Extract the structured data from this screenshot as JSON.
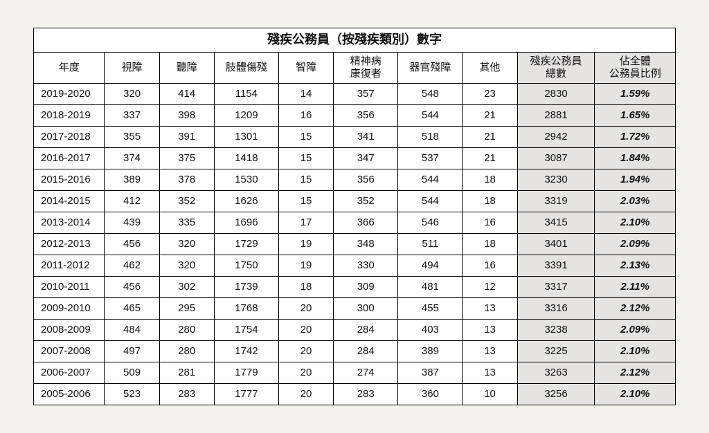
{
  "table": {
    "title": "殘疾公務員（按殘疾類別）數字",
    "header_fontsize": 18,
    "cell_fontsize": 15,
    "background_color": "#ffffff",
    "page_background": "#f4f2ed",
    "border_color": "#000000",
    "shaded_bg": "#e6e3e3",
    "columns": [
      {
        "key": "year",
        "label_lines": [
          "年度"
        ]
      },
      {
        "key": "visual",
        "label_lines": [
          "視障"
        ]
      },
      {
        "key": "hearing",
        "label_lines": [
          "聽障"
        ]
      },
      {
        "key": "physical",
        "label_lines": [
          "肢體傷殘"
        ]
      },
      {
        "key": "intel",
        "label_lines": [
          "智障"
        ]
      },
      {
        "key": "mental",
        "label_lines": [
          "精神病",
          "康復者"
        ]
      },
      {
        "key": "organ",
        "label_lines": [
          "器官殘障"
        ]
      },
      {
        "key": "other",
        "label_lines": [
          "其他"
        ]
      },
      {
        "key": "total",
        "label_lines": [
          "殘疾公務員",
          "總數"
        ],
        "shaded": true
      },
      {
        "key": "pct",
        "label_lines": [
          "佔全體",
          "公務員比例"
        ],
        "shaded": true,
        "italic": true
      }
    ],
    "rows": [
      {
        "year": "2019-2020",
        "visual": "320",
        "hearing": "414",
        "physical": "1154",
        "intel": "14",
        "mental": "357",
        "organ": "548",
        "other": "23",
        "total": "2830",
        "pct": "1.59%"
      },
      {
        "year": "2018-2019",
        "visual": "337",
        "hearing": "398",
        "physical": "1209",
        "intel": "16",
        "mental": "356",
        "organ": "544",
        "other": "21",
        "total": "2881",
        "pct": "1.65%"
      },
      {
        "year": "2017-2018",
        "visual": "355",
        "hearing": "391",
        "physical": "1301",
        "intel": "15",
        "mental": "341",
        "organ": "518",
        "other": "21",
        "total": "2942",
        "pct": "1.72%"
      },
      {
        "year": "2016-2017",
        "visual": "374",
        "hearing": "375",
        "physical": "1418",
        "intel": "15",
        "mental": "347",
        "organ": "537",
        "other": "21",
        "total": "3087",
        "pct": "1.84%"
      },
      {
        "year": "2015-2016",
        "visual": "389",
        "hearing": "378",
        "physical": "1530",
        "intel": "15",
        "mental": "356",
        "organ": "544",
        "other": "18",
        "total": "3230",
        "pct": "1.94%"
      },
      {
        "year": "2014-2015",
        "visual": "412",
        "hearing": "352",
        "physical": "1626",
        "intel": "15",
        "mental": "352",
        "organ": "544",
        "other": "18",
        "total": "3319",
        "pct": "2.03%"
      },
      {
        "year": "2013-2014",
        "visual": "439",
        "hearing": "335",
        "physical": "1696",
        "intel": "17",
        "mental": "366",
        "organ": "546",
        "other": "16",
        "total": "3415",
        "pct": "2.10%"
      },
      {
        "year": "2012-2013",
        "visual": "456",
        "hearing": "320",
        "physical": "1729",
        "intel": "19",
        "mental": "348",
        "organ": "511",
        "other": "18",
        "total": "3401",
        "pct": "2.09%"
      },
      {
        "year": "2011-2012",
        "visual": "462",
        "hearing": "320",
        "physical": "1750",
        "intel": "19",
        "mental": "330",
        "organ": "494",
        "other": "16",
        "total": "3391",
        "pct": "2.13%"
      },
      {
        "year": "2010-2011",
        "visual": "456",
        "hearing": "302",
        "physical": "1739",
        "intel": "18",
        "mental": "309",
        "organ": "481",
        "other": "12",
        "total": "3317",
        "pct": "2.11%"
      },
      {
        "year": "2009-2010",
        "visual": "465",
        "hearing": "295",
        "physical": "1768",
        "intel": "20",
        "mental": "300",
        "organ": "455",
        "other": "13",
        "total": "3316",
        "pct": "2.12%"
      },
      {
        "year": "2008-2009",
        "visual": "484",
        "hearing": "280",
        "physical": "1754",
        "intel": "20",
        "mental": "284",
        "organ": "403",
        "other": "13",
        "total": "3238",
        "pct": "2.09%"
      },
      {
        "year": "2007-2008",
        "visual": "497",
        "hearing": "280",
        "physical": "1742",
        "intel": "20",
        "mental": "284",
        "organ": "389",
        "other": "13",
        "total": "3225",
        "pct": "2.10%"
      },
      {
        "year": "2006-2007",
        "visual": "509",
        "hearing": "281",
        "physical": "1779",
        "intel": "20",
        "mental": "274",
        "organ": "387",
        "other": "13",
        "total": "3263",
        "pct": "2.12%"
      },
      {
        "year": "2005-2006",
        "visual": "523",
        "hearing": "283",
        "physical": "1777",
        "intel": "20",
        "mental": "283",
        "organ": "360",
        "other": "10",
        "total": "3256",
        "pct": "2.10%"
      }
    ]
  }
}
